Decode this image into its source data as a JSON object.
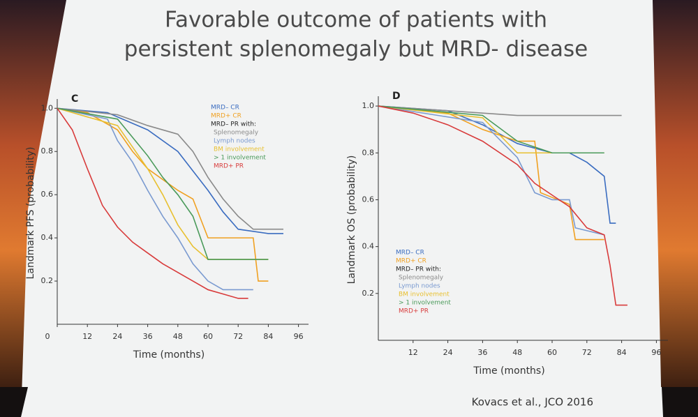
{
  "slide": {
    "title_lines": [
      "Favorable outcome of patients with",
      "persistent splenomegaly but MRD- disease"
    ],
    "citation": "Kovacs et al., JCO 2016"
  },
  "chart_data": [
    {
      "type": "line",
      "panel": "C",
      "xlabel": "Time (months)",
      "ylabel": "Landmark PFS (probability)",
      "xlim": [
        0,
        100
      ],
      "ylim": [
        0,
        1.03
      ],
      "xticks": [
        0,
        12,
        24,
        36,
        48,
        60,
        72,
        84,
        96
      ],
      "yticks": [
        0.2,
        0.4,
        0.6,
        0.8,
        {
          "value": 1,
          "label": "1.0"
        }
      ],
      "legend_position": "upper right",
      "legend_header": "MRD– PR with:",
      "series": [
        {
          "name": "MRD– CR",
          "color": "#3a6cc0",
          "x": [
            0,
            20,
            36,
            48,
            60,
            66,
            72,
            84,
            90
          ],
          "values": [
            1,
            0.98,
            0.9,
            0.8,
            0.62,
            0.52,
            0.44,
            0.42,
            0.42
          ]
        },
        {
          "name": "MRD+ CR",
          "color": "#f0a020",
          "x": [
            0,
            12,
            24,
            30,
            36,
            48,
            54,
            60,
            78,
            80,
            84
          ],
          "values": [
            1,
            0.98,
            0.9,
            0.8,
            0.72,
            0.62,
            0.58,
            0.4,
            0.4,
            0.2,
            0.2
          ]
        },
        {
          "name": "Splenomegaly",
          "color": "#8a8a8a",
          "x": [
            0,
            24,
            36,
            48,
            54,
            60,
            66,
            72,
            78,
            90
          ],
          "values": [
            1,
            0.97,
            0.92,
            0.88,
            0.8,
            0.68,
            0.58,
            0.5,
            0.44,
            0.44
          ]
        },
        {
          "name": "Lymph nodes",
          "color": "#7a9ad0",
          "x": [
            0,
            20,
            24,
            30,
            36,
            42,
            48,
            54,
            60,
            66,
            78
          ],
          "values": [
            1,
            0.95,
            0.85,
            0.75,
            0.62,
            0.5,
            0.4,
            0.28,
            0.2,
            0.16,
            0.16
          ]
        },
        {
          "name": "BM involvement",
          "color": "#e8c030",
          "x": [
            0,
            24,
            36,
            42,
            48,
            54,
            60,
            72,
            84
          ],
          "values": [
            1,
            0.92,
            0.72,
            0.6,
            0.46,
            0.36,
            0.3,
            0.3,
            0.3
          ]
        },
        {
          "name": "> 1 involvement",
          "color": "#4a9a5a",
          "x": [
            0,
            24,
            36,
            42,
            48,
            54,
            60,
            84
          ],
          "values": [
            1,
            0.95,
            0.78,
            0.68,
            0.6,
            0.5,
            0.3,
            0.3
          ]
        },
        {
          "name": "MRD+ PR",
          "color": "#d83a3a",
          "x": [
            0,
            6,
            12,
            18,
            24,
            30,
            36,
            42,
            48,
            54,
            60,
            66,
            72,
            76
          ],
          "values": [
            1,
            0.9,
            0.72,
            0.55,
            0.45,
            0.38,
            0.33,
            0.28,
            0.24,
            0.2,
            0.16,
            0.14,
            0.12,
            0.12
          ]
        }
      ]
    },
    {
      "type": "line",
      "panel": "D",
      "xlabel": "Time (months)",
      "ylabel": "Landmark OS (probability)",
      "xlim": [
        0,
        100
      ],
      "ylim": [
        0,
        1.03
      ],
      "xticks": [
        12,
        24,
        36,
        48,
        60,
        72,
        84,
        96
      ],
      "yticks": [
        0.2,
        0.4,
        0.6,
        0.8,
        {
          "value": 1,
          "label": "1.0"
        }
      ],
      "legend_position": "lower left",
      "legend_header": "MRD– PR with:",
      "series": [
        {
          "name": "MRD– CR",
          "color": "#3a6cc0",
          "x": [
            0,
            24,
            36,
            48,
            60,
            66,
            72,
            78,
            80,
            82
          ],
          "values": [
            1,
            0.98,
            0.92,
            0.84,
            0.8,
            0.8,
            0.76,
            0.7,
            0.5,
            0.5
          ]
        },
        {
          "name": "MRD+ CR",
          "color": "#f0a020",
          "x": [
            0,
            24,
            36,
            48,
            54,
            56,
            66,
            68,
            78
          ],
          "values": [
            1,
            0.97,
            0.9,
            0.85,
            0.85,
            0.63,
            0.58,
            0.43,
            0.43
          ]
        },
        {
          "name": "Splenomegaly",
          "color": "#8a8a8a",
          "x": [
            0,
            36,
            48,
            84
          ],
          "values": [
            1,
            0.97,
            0.96,
            0.96
          ]
        },
        {
          "name": "Lymph nodes",
          "color": "#7a9ad0",
          "x": [
            0,
            36,
            48,
            54,
            60,
            66,
            68,
            78
          ],
          "values": [
            1,
            0.93,
            0.78,
            0.63,
            0.6,
            0.6,
            0.48,
            0.45
          ]
        },
        {
          "name": "BM involvement",
          "color": "#e8c030",
          "x": [
            0,
            36,
            48,
            60,
            78
          ],
          "values": [
            1,
            0.95,
            0.8,
            0.8,
            0.8
          ]
        },
        {
          "name": "> 1 involvement",
          "color": "#4a9a5a",
          "x": [
            0,
            36,
            48,
            60,
            78
          ],
          "values": [
            1,
            0.96,
            0.85,
            0.8,
            0.8
          ]
        },
        {
          "name": "MRD+ PR",
          "color": "#d83a3a",
          "x": [
            0,
            12,
            24,
            36,
            48,
            54,
            60,
            66,
            72,
            78,
            80,
            82,
            86
          ],
          "values": [
            1,
            0.97,
            0.92,
            0.85,
            0.75,
            0.67,
            0.62,
            0.57,
            0.48,
            0.45,
            0.32,
            0.15,
            0.15
          ]
        }
      ]
    }
  ]
}
